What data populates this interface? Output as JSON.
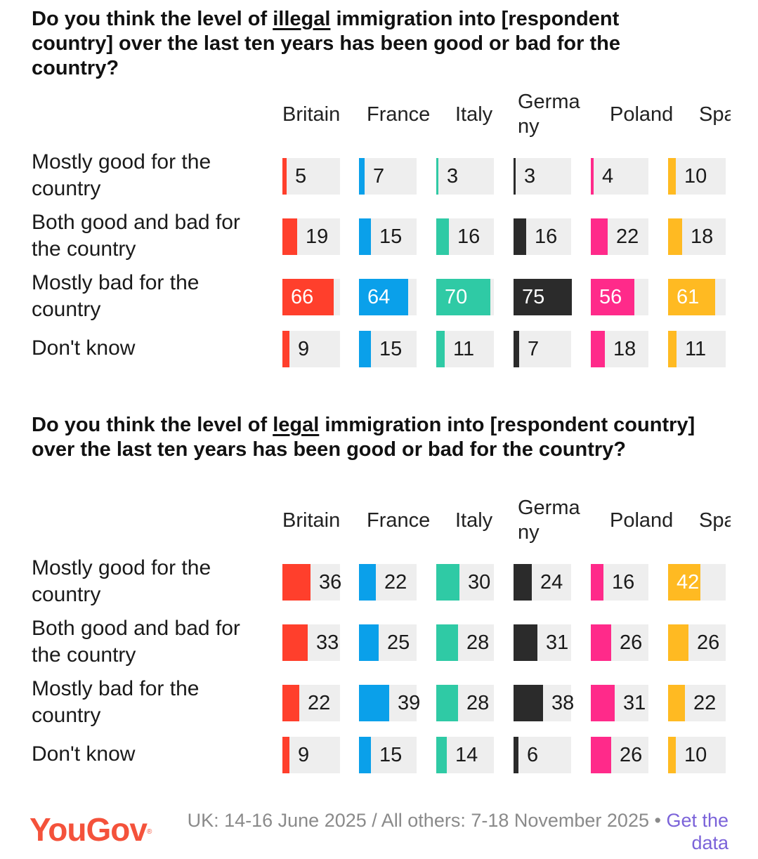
{
  "columns": [
    "Britain",
    "France",
    "Italy",
    "Germany",
    "Poland",
    "Spain"
  ],
  "colors": [
    "#ff3f2c",
    "#0aa0ea",
    "#2fcaa5",
    "#2b2b2b",
    "#ff2a8a",
    "#ffba22"
  ],
  "rows": [
    "Mostly good for the country",
    "Both good and bad for the country",
    "Mostly bad for the country",
    "Don't know"
  ],
  "chart_data": [
    {
      "type": "table",
      "title_parts": [
        "Do you think the level of ",
        "illegal",
        " immigration into [respondent country] over the last ten years has been good or bad for the country?"
      ],
      "categories": [
        "Mostly good for the country",
        "Both good and bad for the country",
        "Mostly bad for the country",
        "Don't know"
      ],
      "series": [
        {
          "name": "Britain",
          "values": [
            5,
            19,
            66,
            9
          ]
        },
        {
          "name": "France",
          "values": [
            7,
            15,
            64,
            15
          ]
        },
        {
          "name": "Italy",
          "values": [
            3,
            16,
            70,
            11
          ]
        },
        {
          "name": "Germany",
          "values": [
            3,
            16,
            75,
            7
          ]
        },
        {
          "name": "Poland",
          "values": [
            4,
            22,
            56,
            18
          ]
        },
        {
          "name": "Spain",
          "values": [
            10,
            18,
            61,
            11
          ]
        }
      ],
      "unit": "%"
    },
    {
      "type": "table",
      "title_parts": [
        "Do you think the level of ",
        "legal",
        " immigration into [respondent country] over the last ten years has been good or bad for the country?"
      ],
      "categories": [
        "Mostly good for the country",
        "Both good and bad for the country",
        "Mostly bad for the country",
        "Don't know"
      ],
      "series": [
        {
          "name": "Britain",
          "values": [
            36,
            33,
            22,
            9
          ]
        },
        {
          "name": "France",
          "values": [
            22,
            25,
            39,
            15
          ]
        },
        {
          "name": "Italy",
          "values": [
            30,
            28,
            28,
            14
          ]
        },
        {
          "name": "Germany",
          "values": [
            24,
            31,
            38,
            6
          ]
        },
        {
          "name": "Poland",
          "values": [
            16,
            26,
            31,
            26
          ]
        },
        {
          "name": "Spain",
          "values": [
            42,
            26,
            22,
            10
          ]
        }
      ],
      "unit": "%"
    }
  ],
  "footer": {
    "brand": "YouGov",
    "source": "UK: 14-16 June 2025 / All others: 7-18 November 2025 • ",
    "link": "Get the data"
  }
}
